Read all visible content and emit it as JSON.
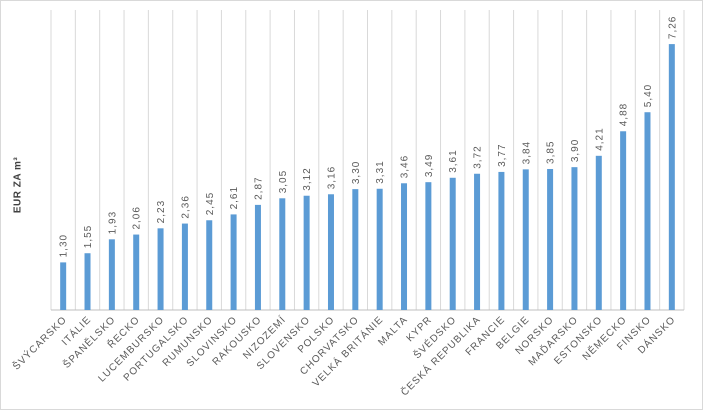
{
  "chart_data": {
    "type": "bar",
    "y_label": "EUR ZA m³",
    "categories": [
      "ŠVÝCARSKO",
      "ITÁLIE",
      "ŠPANĚLSKO",
      "ŘECKO",
      "LUCEMBURSKO",
      "PORTUGALSKO",
      "RUMUNSKO",
      "SLOVINSKO",
      "RAKOUSKO",
      "NIZOZEMÍ",
      "SLOVENSKO",
      "POLSKO",
      "CHORVATSKO",
      "VELKÁ BRITÁNIE",
      "MALTA",
      "KYPR",
      "ŠVÉDSKO",
      "ČESKÁ REPUBLIKA",
      "FRANCIE",
      "BELGIE",
      "NORSKO",
      "MAĎARSKO",
      "ESTONSKO",
      "NĚMECKO",
      "FINSKO",
      "DÁNSKO"
    ],
    "values": [
      1.3,
      1.55,
      1.93,
      2.06,
      2.23,
      2.36,
      2.45,
      2.61,
      2.87,
      3.05,
      3.12,
      3.16,
      3.3,
      3.31,
      3.46,
      3.49,
      3.61,
      3.72,
      3.77,
      3.84,
      3.85,
      3.9,
      4.21,
      4.88,
      5.4,
      7.26
    ],
    "value_labels": [
      "1,30",
      "1,55",
      "1,93",
      "2,06",
      "2,23",
      "2,36",
      "2,45",
      "2,61",
      "2,87",
      "3,05",
      "3,12",
      "3,16",
      "3,30",
      "3,31",
      "3,46",
      "3,49",
      "3,61",
      "3,72",
      "3,77",
      "3,84",
      "3,85",
      "3,90",
      "4,21",
      "4,88",
      "5,40",
      "7,26"
    ],
    "color": "#5b9bd5",
    "ylim": [
      0,
      8
    ],
    "grid": true
  }
}
